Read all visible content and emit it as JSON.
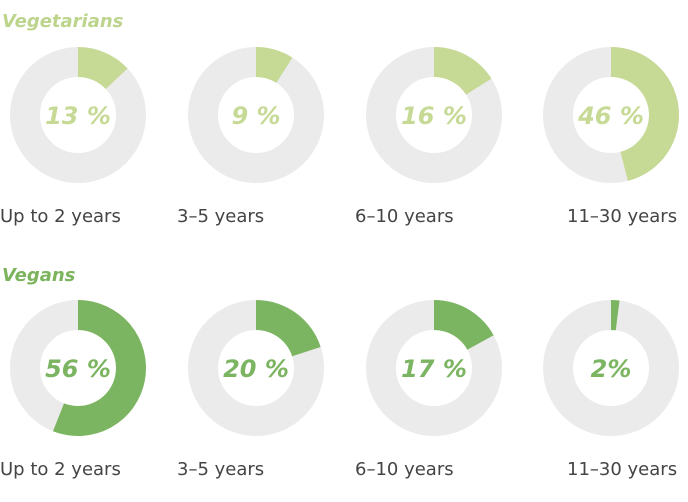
{
  "chart_data": [
    {
      "type": "donut",
      "title": "Vegetarians",
      "categories": [
        "Up to 2 years",
        "3–5 years",
        "6–10 years",
        "11–30 years"
      ],
      "values": [
        13,
        9,
        16,
        46
      ],
      "value_labels": [
        "13 %",
        "9 %",
        "16 %",
        "46 %"
      ],
      "unit": "%",
      "colors": {
        "title": "#bcd48c",
        "fill": "#c6da95",
        "track": "#ebebeb",
        "label": "#c6da95"
      }
    },
    {
      "type": "donut",
      "title": "Vegans",
      "categories": [
        "Up to 2 years",
        "3–5 years",
        "6–10 years",
        "11–30 years"
      ],
      "values": [
        56,
        20,
        17,
        2
      ],
      "value_labels": [
        "56 %",
        "20 %",
        "17 %",
        "2%"
      ],
      "unit": "%",
      "colors": {
        "title": "#7cb45d",
        "fill": "#7cb562",
        "track": "#ebebeb",
        "label": "#7cb562"
      }
    }
  ]
}
